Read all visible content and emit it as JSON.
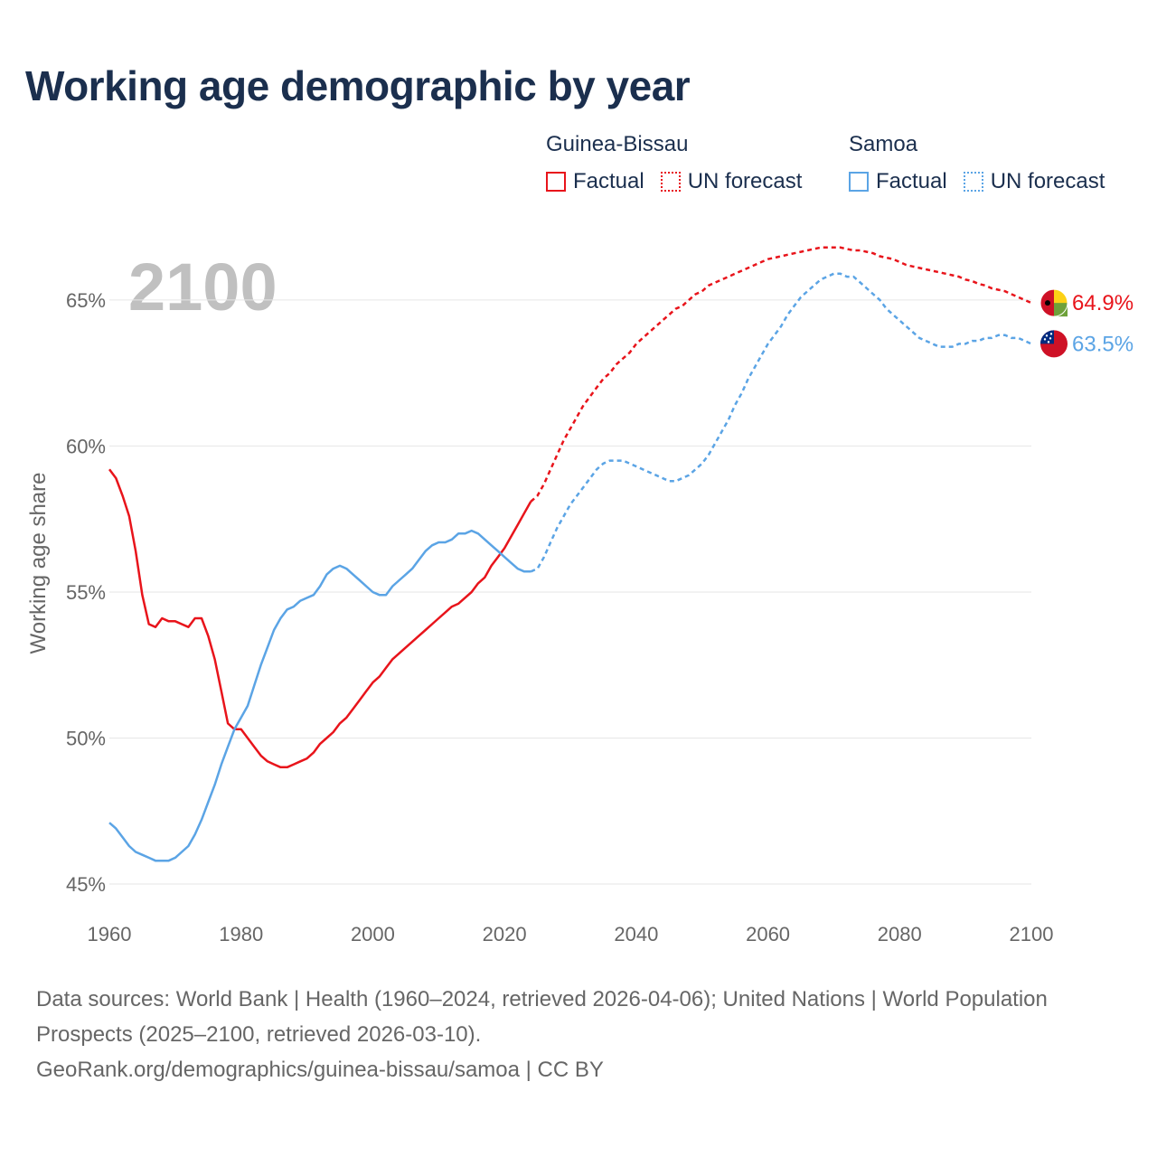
{
  "title": "Working age demographic by year",
  "year_watermark": "2100",
  "legend": {
    "groups": [
      {
        "name": "Guinea-Bissau",
        "factual": "Factual",
        "forecast": "UN forecast",
        "color": "#e8141b"
      },
      {
        "name": "Samoa",
        "factual": "Factual",
        "forecast": "UN forecast",
        "color": "#5ba4e5"
      }
    ]
  },
  "footer": {
    "sources": "Data sources: World Bank | Health (1960–2024, retrieved 2026-04-06); United Nations | World Population Prospects (2025–2100, retrieved 2026-03-10).",
    "credit": "GeoRank.org/demographics/guinea-bissau/samoa | CC BY"
  },
  "chart_data": {
    "type": "line",
    "ylabel": "Working age share",
    "xlim": [
      1960,
      2100
    ],
    "ylim": [
      45,
      68
    ],
    "x_ticks": [
      1960,
      1980,
      2000,
      2020,
      2040,
      2060,
      2080,
      2100
    ],
    "x_tick_labels": [
      "1960",
      "1980",
      "2000",
      "2020",
      "2040",
      "2060",
      "2080",
      "2100"
    ],
    "y_ticks": [
      45,
      50,
      55,
      60,
      65
    ],
    "y_tick_labels": [
      "45%",
      "50%",
      "55%",
      "60%",
      "65%"
    ],
    "factual_until": 2024,
    "series": [
      {
        "name": "Guinea-Bissau",
        "color": "#e8141b",
        "end_label": "64.9%",
        "points": [
          [
            1960,
            59.2
          ],
          [
            1961,
            58.9
          ],
          [
            1962,
            58.3
          ],
          [
            1963,
            57.6
          ],
          [
            1964,
            56.4
          ],
          [
            1965,
            54.9
          ],
          [
            1966,
            53.9
          ],
          [
            1967,
            53.8
          ],
          [
            1968,
            54.1
          ],
          [
            1969,
            54.0
          ],
          [
            1970,
            54.0
          ],
          [
            1971,
            53.9
          ],
          [
            1972,
            53.8
          ],
          [
            1973,
            54.1
          ],
          [
            1974,
            54.1
          ],
          [
            1975,
            53.5
          ],
          [
            1976,
            52.7
          ],
          [
            1977,
            51.6
          ],
          [
            1978,
            50.5
          ],
          [
            1979,
            50.3
          ],
          [
            1980,
            50.3
          ],
          [
            1981,
            50.0
          ],
          [
            1982,
            49.7
          ],
          [
            1983,
            49.4
          ],
          [
            1984,
            49.2
          ],
          [
            1985,
            49.1
          ],
          [
            1986,
            49.0
          ],
          [
            1987,
            49.0
          ],
          [
            1988,
            49.1
          ],
          [
            1989,
            49.2
          ],
          [
            1990,
            49.3
          ],
          [
            1991,
            49.5
          ],
          [
            1992,
            49.8
          ],
          [
            1993,
            50.0
          ],
          [
            1994,
            50.2
          ],
          [
            1995,
            50.5
          ],
          [
            1996,
            50.7
          ],
          [
            1997,
            51.0
          ],
          [
            1998,
            51.3
          ],
          [
            1999,
            51.6
          ],
          [
            2000,
            51.9
          ],
          [
            2001,
            52.1
          ],
          [
            2002,
            52.4
          ],
          [
            2003,
            52.7
          ],
          [
            2004,
            52.9
          ],
          [
            2005,
            53.1
          ],
          [
            2006,
            53.3
          ],
          [
            2007,
            53.5
          ],
          [
            2008,
            53.7
          ],
          [
            2009,
            53.9
          ],
          [
            2010,
            54.1
          ],
          [
            2011,
            54.3
          ],
          [
            2012,
            54.5
          ],
          [
            2013,
            54.6
          ],
          [
            2014,
            54.8
          ],
          [
            2015,
            55.0
          ],
          [
            2016,
            55.3
          ],
          [
            2017,
            55.5
          ],
          [
            2018,
            55.9
          ],
          [
            2019,
            56.2
          ],
          [
            2020,
            56.5
          ],
          [
            2021,
            56.9
          ],
          [
            2022,
            57.3
          ],
          [
            2023,
            57.7
          ],
          [
            2024,
            58.1
          ],
          [
            2025,
            58.3
          ],
          [
            2026,
            58.7
          ],
          [
            2027,
            59.2
          ],
          [
            2028,
            59.7
          ],
          [
            2029,
            60.2
          ],
          [
            2030,
            60.6
          ],
          [
            2031,
            61.0
          ],
          [
            2032,
            61.4
          ],
          [
            2033,
            61.7
          ],
          [
            2034,
            62.0
          ],
          [
            2035,
            62.3
          ],
          [
            2036,
            62.5
          ],
          [
            2037,
            62.8
          ],
          [
            2038,
            63.0
          ],
          [
            2039,
            63.2
          ],
          [
            2040,
            63.5
          ],
          [
            2041,
            63.7
          ],
          [
            2042,
            63.9
          ],
          [
            2043,
            64.1
          ],
          [
            2044,
            64.3
          ],
          [
            2045,
            64.5
          ],
          [
            2046,
            64.7
          ],
          [
            2047,
            64.8
          ],
          [
            2048,
            65.0
          ],
          [
            2049,
            65.2
          ],
          [
            2050,
            65.3
          ],
          [
            2051,
            65.5
          ],
          [
            2052,
            65.6
          ],
          [
            2053,
            65.7
          ],
          [
            2054,
            65.8
          ],
          [
            2055,
            65.9
          ],
          [
            2056,
            66.0
          ],
          [
            2057,
            66.1
          ],
          [
            2058,
            66.2
          ],
          [
            2059,
            66.3
          ],
          [
            2060,
            66.4
          ],
          [
            2061,
            66.45
          ],
          [
            2062,
            66.5
          ],
          [
            2063,
            66.55
          ],
          [
            2064,
            66.6
          ],
          [
            2065,
            66.65
          ],
          [
            2066,
            66.7
          ],
          [
            2067,
            66.75
          ],
          [
            2068,
            66.8
          ],
          [
            2069,
            66.8
          ],
          [
            2070,
            66.8
          ],
          [
            2071,
            66.8
          ],
          [
            2072,
            66.75
          ],
          [
            2073,
            66.7
          ],
          [
            2074,
            66.7
          ],
          [
            2075,
            66.65
          ],
          [
            2076,
            66.6
          ],
          [
            2077,
            66.5
          ],
          [
            2078,
            66.45
          ],
          [
            2079,
            66.4
          ],
          [
            2080,
            66.3
          ],
          [
            2081,
            66.2
          ],
          [
            2082,
            66.15
          ],
          [
            2083,
            66.1
          ],
          [
            2084,
            66.05
          ],
          [
            2085,
            66.0
          ],
          [
            2086,
            65.95
          ],
          [
            2087,
            65.9
          ],
          [
            2088,
            65.85
          ],
          [
            2089,
            65.8
          ],
          [
            2090,
            65.7
          ],
          [
            2091,
            65.65
          ],
          [
            2092,
            65.55
          ],
          [
            2093,
            65.5
          ],
          [
            2094,
            65.4
          ],
          [
            2095,
            65.35
          ],
          [
            2096,
            65.3
          ],
          [
            2097,
            65.2
          ],
          [
            2098,
            65.1
          ],
          [
            2099,
            65.0
          ],
          [
            2100,
            64.9
          ]
        ]
      },
      {
        "name": "Samoa",
        "color": "#5ba4e5",
        "end_label": "63.5%",
        "points": [
          [
            1960,
            47.1
          ],
          [
            1961,
            46.9
          ],
          [
            1962,
            46.6
          ],
          [
            1963,
            46.3
          ],
          [
            1964,
            46.1
          ],
          [
            1965,
            46.0
          ],
          [
            1966,
            45.9
          ],
          [
            1967,
            45.8
          ],
          [
            1968,
            45.8
          ],
          [
            1969,
            45.8
          ],
          [
            1970,
            45.9
          ],
          [
            1971,
            46.1
          ],
          [
            1972,
            46.3
          ],
          [
            1973,
            46.7
          ],
          [
            1974,
            47.2
          ],
          [
            1975,
            47.8
          ],
          [
            1976,
            48.4
          ],
          [
            1977,
            49.1
          ],
          [
            1978,
            49.7
          ],
          [
            1979,
            50.3
          ],
          [
            1980,
            50.7
          ],
          [
            1981,
            51.1
          ],
          [
            1982,
            51.8
          ],
          [
            1983,
            52.5
          ],
          [
            1984,
            53.1
          ],
          [
            1985,
            53.7
          ],
          [
            1986,
            54.1
          ],
          [
            1987,
            54.4
          ],
          [
            1988,
            54.5
          ],
          [
            1989,
            54.7
          ],
          [
            1990,
            54.8
          ],
          [
            1991,
            54.9
          ],
          [
            1992,
            55.2
          ],
          [
            1993,
            55.6
          ],
          [
            1994,
            55.8
          ],
          [
            1995,
            55.9
          ],
          [
            1996,
            55.8
          ],
          [
            1997,
            55.6
          ],
          [
            1998,
            55.4
          ],
          [
            1999,
            55.2
          ],
          [
            2000,
            55.0
          ],
          [
            2001,
            54.9
          ],
          [
            2002,
            54.9
          ],
          [
            2003,
            55.2
          ],
          [
            2004,
            55.4
          ],
          [
            2005,
            55.6
          ],
          [
            2006,
            55.8
          ],
          [
            2007,
            56.1
          ],
          [
            2008,
            56.4
          ],
          [
            2009,
            56.6
          ],
          [
            2010,
            56.7
          ],
          [
            2011,
            56.7
          ],
          [
            2012,
            56.8
          ],
          [
            2013,
            57.0
          ],
          [
            2014,
            57.0
          ],
          [
            2015,
            57.1
          ],
          [
            2016,
            57.0
          ],
          [
            2017,
            56.8
          ],
          [
            2018,
            56.6
          ],
          [
            2019,
            56.4
          ],
          [
            2020,
            56.2
          ],
          [
            2021,
            56.0
          ],
          [
            2022,
            55.8
          ],
          [
            2023,
            55.7
          ],
          [
            2024,
            55.7
          ],
          [
            2025,
            55.8
          ],
          [
            2026,
            56.2
          ],
          [
            2027,
            56.7
          ],
          [
            2028,
            57.2
          ],
          [
            2029,
            57.6
          ],
          [
            2030,
            58.0
          ],
          [
            2031,
            58.3
          ],
          [
            2032,
            58.6
          ],
          [
            2033,
            58.9
          ],
          [
            2034,
            59.2
          ],
          [
            2035,
            59.4
          ],
          [
            2036,
            59.5
          ],
          [
            2037,
            59.5
          ],
          [
            2038,
            59.5
          ],
          [
            2039,
            59.4
          ],
          [
            2040,
            59.3
          ],
          [
            2041,
            59.2
          ],
          [
            2042,
            59.1
          ],
          [
            2043,
            59.0
          ],
          [
            2044,
            58.9
          ],
          [
            2045,
            58.8
          ],
          [
            2046,
            58.8
          ],
          [
            2047,
            58.9
          ],
          [
            2048,
            59.0
          ],
          [
            2049,
            59.2
          ],
          [
            2050,
            59.4
          ],
          [
            2051,
            59.7
          ],
          [
            2052,
            60.1
          ],
          [
            2053,
            60.5
          ],
          [
            2054,
            60.9
          ],
          [
            2055,
            61.4
          ],
          [
            2056,
            61.8
          ],
          [
            2057,
            62.3
          ],
          [
            2058,
            62.7
          ],
          [
            2059,
            63.1
          ],
          [
            2060,
            63.5
          ],
          [
            2061,
            63.8
          ],
          [
            2062,
            64.1
          ],
          [
            2063,
            64.5
          ],
          [
            2064,
            64.8
          ],
          [
            2065,
            65.1
          ],
          [
            2066,
            65.3
          ],
          [
            2067,
            65.5
          ],
          [
            2068,
            65.7
          ],
          [
            2069,
            65.8
          ],
          [
            2070,
            65.9
          ],
          [
            2071,
            65.9
          ],
          [
            2072,
            65.8
          ],
          [
            2073,
            65.8
          ],
          [
            2074,
            65.6
          ],
          [
            2075,
            65.4
          ],
          [
            2076,
            65.2
          ],
          [
            2077,
            65.0
          ],
          [
            2078,
            64.7
          ],
          [
            2079,
            64.5
          ],
          [
            2080,
            64.3
          ],
          [
            2081,
            64.1
          ],
          [
            2082,
            63.9
          ],
          [
            2083,
            63.7
          ],
          [
            2084,
            63.6
          ],
          [
            2085,
            63.5
          ],
          [
            2086,
            63.4
          ],
          [
            2087,
            63.4
          ],
          [
            2088,
            63.4
          ],
          [
            2089,
            63.5
          ],
          [
            2090,
            63.5
          ],
          [
            2091,
            63.6
          ],
          [
            2092,
            63.6
          ],
          [
            2093,
            63.7
          ],
          [
            2094,
            63.7
          ],
          [
            2095,
            63.8
          ],
          [
            2096,
            63.8
          ],
          [
            2097,
            63.7
          ],
          [
            2098,
            63.7
          ],
          [
            2099,
            63.6
          ],
          [
            2100,
            63.5
          ]
        ]
      }
    ]
  }
}
